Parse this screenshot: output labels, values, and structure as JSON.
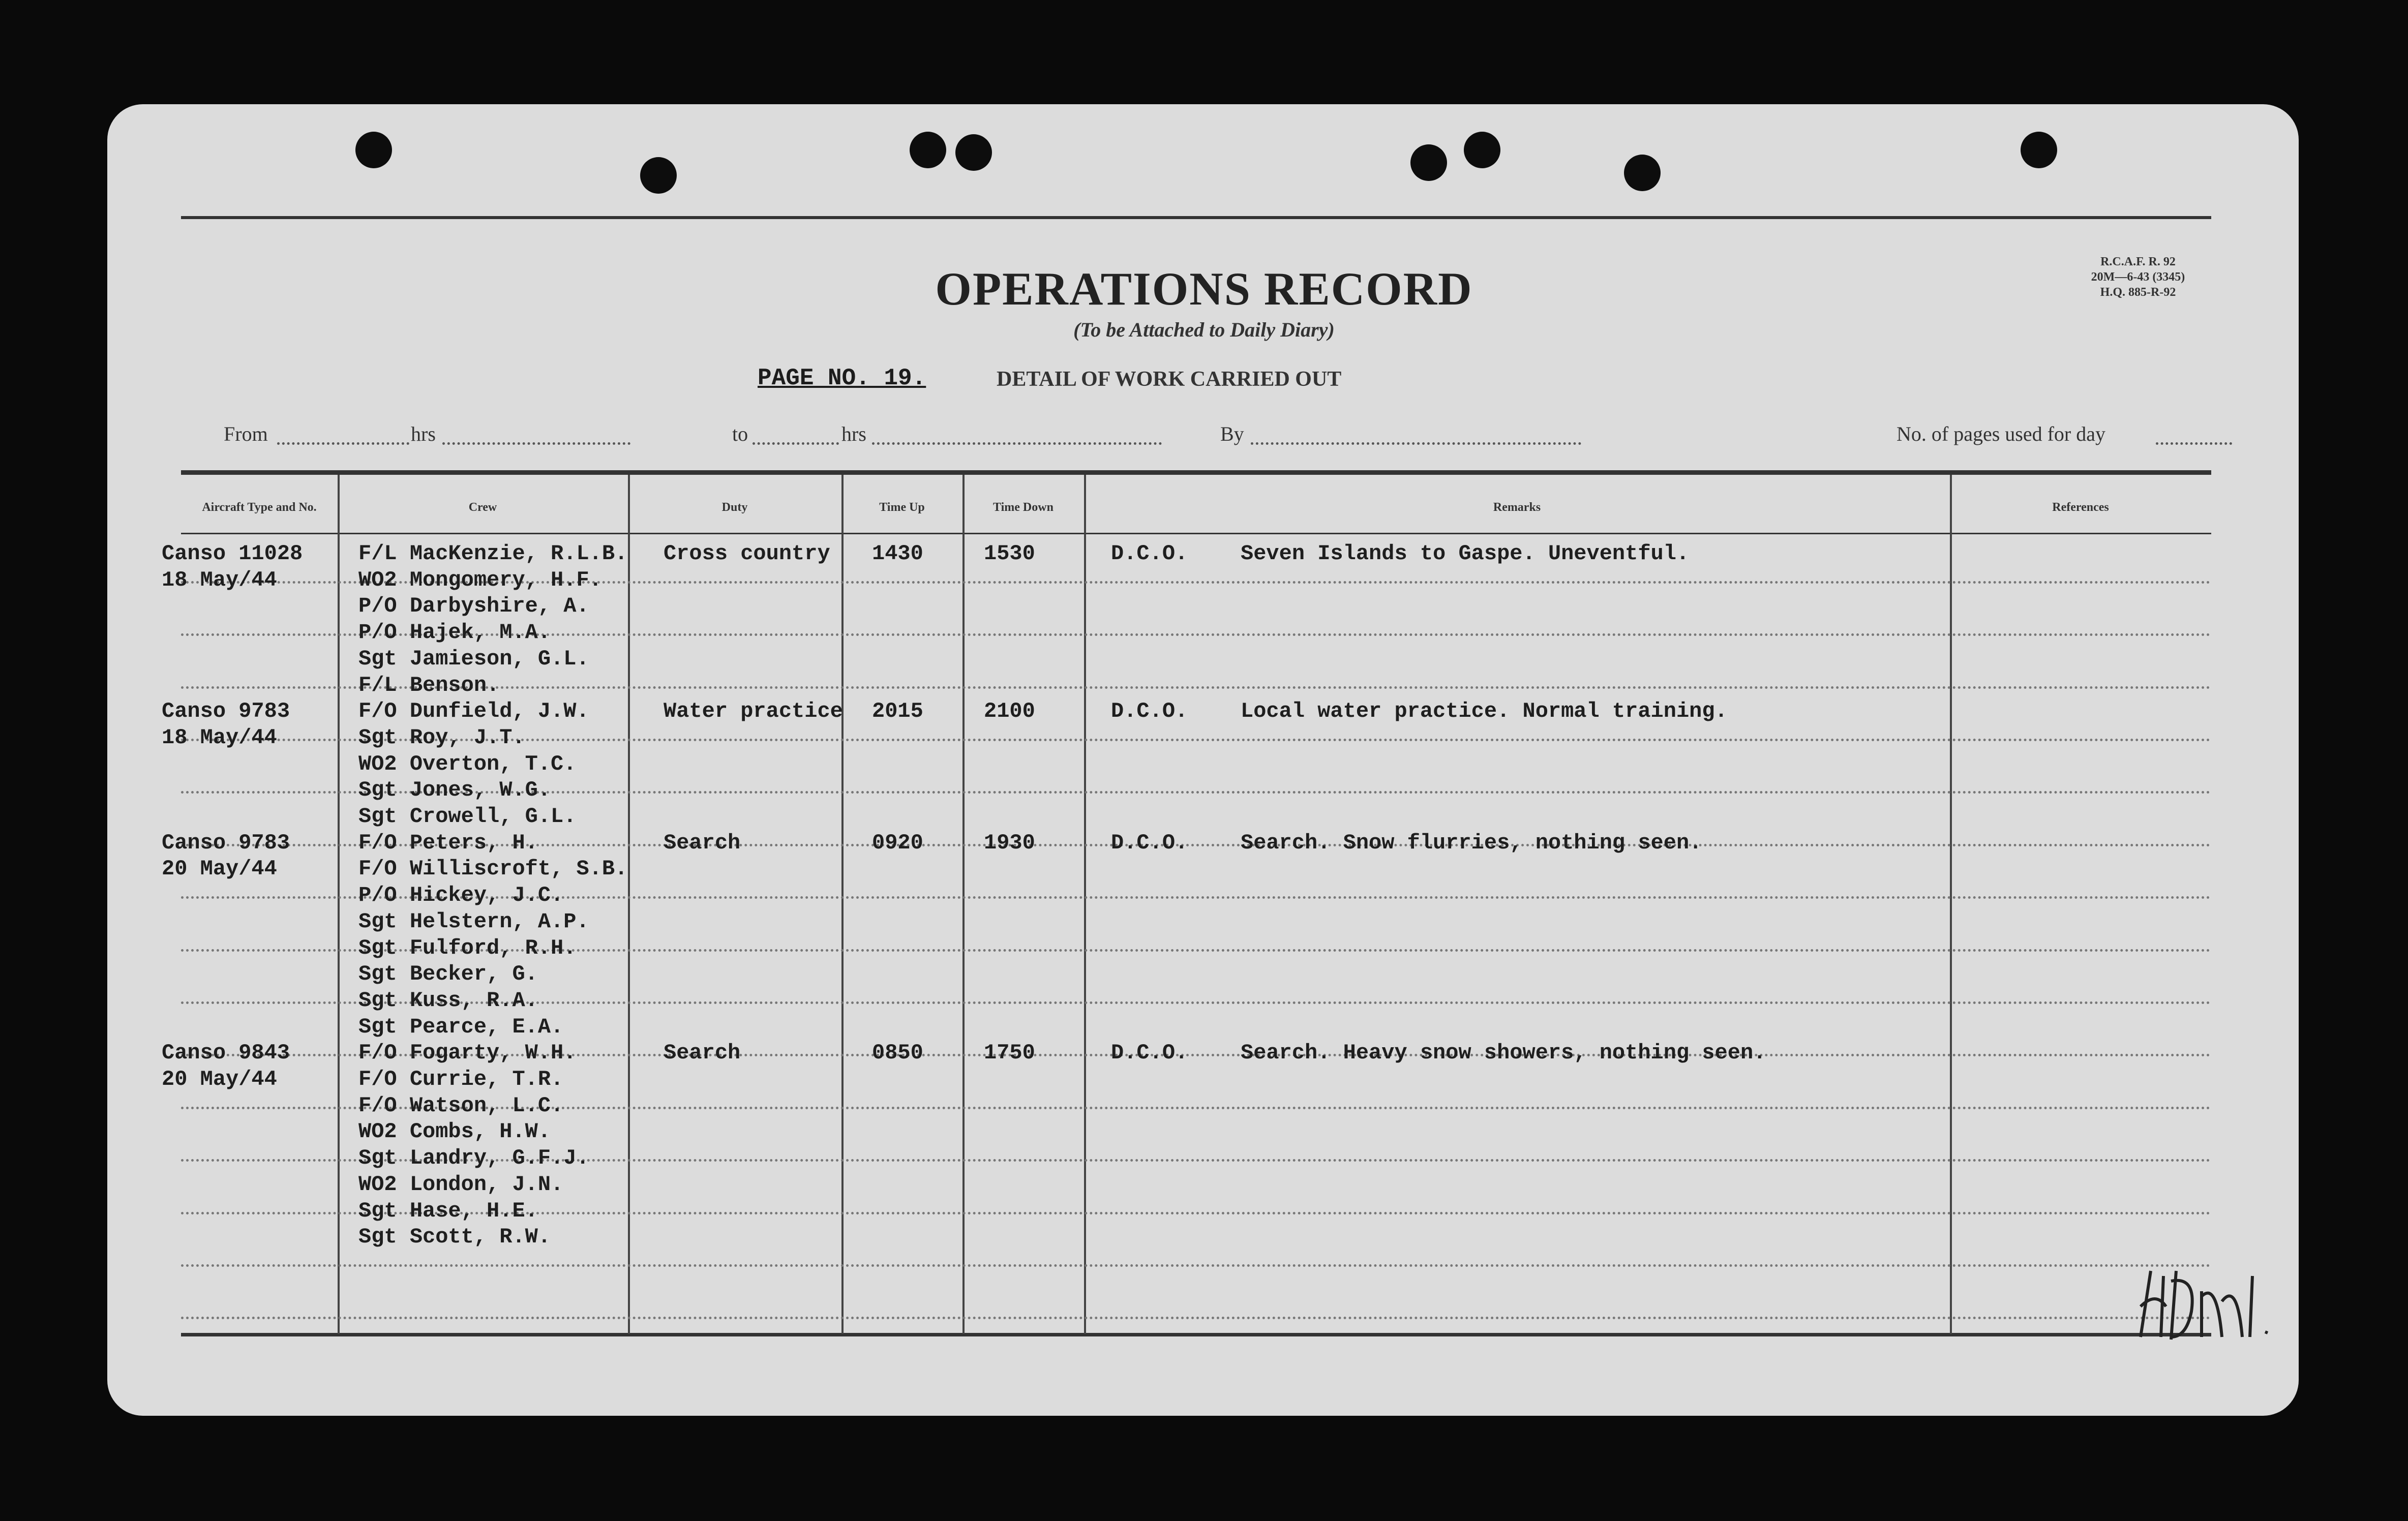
{
  "form": {
    "title": "OPERATIONS RECORD",
    "subtitle": "(To be Attached to Daily Diary)",
    "form_number": [
      "R.C.A.F. R. 92",
      "20M—6-43 (3345)",
      "H.Q. 885-R-92"
    ],
    "page_no": "PAGE NO. 19.",
    "detail_heading": "DETAIL OF WORK CARRIED OUT",
    "from_label": "From",
    "hrs_label": "hrs",
    "to_label": "to",
    "by_label": "By",
    "pages_used_label": "No. of pages used for day"
  },
  "columns": {
    "aircraft": "Aircraft Type and No.",
    "crew": "Crew",
    "duty": "Duty",
    "time_up": "Time Up",
    "time_down": "Time Down",
    "remarks": "Remarks",
    "references": "References"
  },
  "entries": [
    {
      "aircraft": "Canso 11028",
      "date": "18 May/44",
      "crew": [
        "F/L MacKenzie, R.L.B.",
        "WO2 Mongomery, H.F.",
        "P/O Darbyshire, A.",
        "P/O Hajek, M.A.",
        "Sgt Jamieson, G.L.",
        "F/L Benson."
      ],
      "duty": "Cross country",
      "time_up": "1430",
      "time_down": "1530",
      "authority": "D.C.O.",
      "remarks": "Seven Islands to Gaspe.  Uneventful."
    },
    {
      "aircraft": "Canso 9783",
      "date": "18 May/44",
      "crew": [
        "F/O Dunfield, J.W.",
        "Sgt Roy, J.T.",
        "WO2 Overton, T.C.",
        "Sgt Jones, W.G.",
        "Sgt Crowell, G.L."
      ],
      "duty": "Water practice",
      "time_up": "2015",
      "time_down": "2100",
      "authority": "D.C.O.",
      "remarks": "Local water practice.  Normal training."
    },
    {
      "aircraft": "Canso 9783",
      "date": "20 May/44",
      "crew": [
        "F/O Peters, H.",
        "F/O Williscroft, S.B.",
        "P/O Hickey, J.C.",
        "Sgt Helstern, A.P.",
        "Sgt Fulford, R.H.",
        "Sgt Becker, G.",
        "Sgt Kuss, R.A.",
        "Sgt Pearce, E.A."
      ],
      "duty": "Search",
      "time_up": "0920",
      "time_down": "1930",
      "authority": "D.C.O.",
      "remarks": "Search.  Snow flurries, nothing seen."
    },
    {
      "aircraft": "Canso 9843",
      "date": "20 May/44",
      "crew": [
        "F/O Fogarty, W.H.",
        "F/O Currie, T.R.",
        "F/O Watson, L.C.",
        "WO2 Combs, H.W.",
        "Sgt Landry, G.F.J.",
        "WO2 London, J.N.",
        "Sgt Hase, H.E.",
        "Sgt Scott, R.W."
      ],
      "duty": "Search",
      "time_up": "0850",
      "time_down": "1750",
      "authority": "D.C.O.",
      "remarks": "Search.  Heavy snow showers, nothing seen."
    }
  ],
  "signature": "initials-signature",
  "colors": {
    "paper": "#dcdcdc",
    "ink": "#1e1e1e",
    "background": "#0a0a0a"
  }
}
